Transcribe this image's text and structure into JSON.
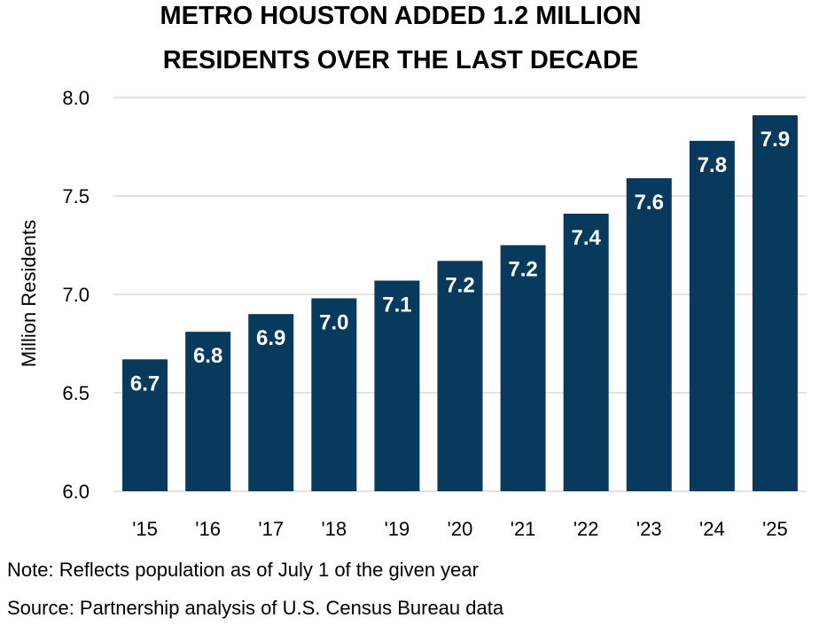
{
  "chart_data": {
    "type": "bar",
    "title_lines": [
      "METRO HOUSTON ADDED 1.2 MILLION",
      "RESIDENTS OVER THE LAST DECADE"
    ],
    "categories": [
      "'15",
      "'16",
      "'17",
      "'18",
      "'19",
      "'20",
      "'21",
      "'22",
      "'23",
      "'24",
      "'25"
    ],
    "values": [
      6.67,
      6.81,
      6.9,
      6.98,
      7.07,
      7.17,
      7.25,
      7.41,
      7.59,
      7.78,
      7.91
    ],
    "data_labels": [
      "6.7",
      "6.8",
      "6.9",
      "7.0",
      "7.1",
      "7.2",
      "7.2",
      "7.4",
      "7.6",
      "7.8",
      "7.9"
    ],
    "xlabel": "",
    "ylabel": "Million Residents",
    "ylim": [
      6.0,
      8.0
    ],
    "yticks": [
      "6.0",
      "6.5",
      "7.0",
      "7.5",
      "8.0"
    ],
    "ytick_values": [
      6.0,
      6.5,
      7.0,
      7.5,
      8.0
    ],
    "grid": true,
    "bar_color": "#083A5E",
    "grid_color": "#D9D9D9",
    "label_color": "#FFFFFF"
  },
  "notes": {
    "note": "Note: Reflects population as of July 1 of the given year",
    "source": "Source: Partnership analysis of U.S. Census Bureau data"
  }
}
